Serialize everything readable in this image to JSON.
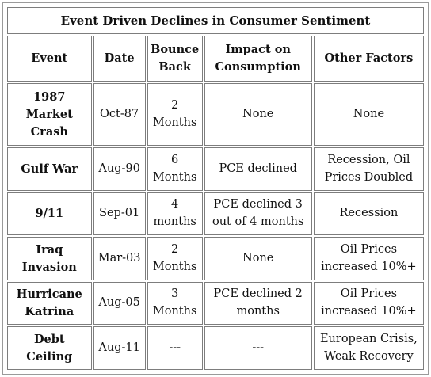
{
  "table": {
    "title": "Event Driven Declines in Consumer Sentiment",
    "headers": [
      "Event",
      "Date",
      "Bounce Back",
      "Impact on Consumption",
      "Other Factors"
    ],
    "rows": [
      {
        "event": "1987 Market Crash",
        "date": "Oct-87",
        "bounce": "2 Months",
        "impact": "None",
        "other": "None"
      },
      {
        "event": "Gulf War",
        "date": "Aug-90",
        "bounce": "6 Months",
        "impact": "PCE declined",
        "other": "Recession, Oil Prices Doubled"
      },
      {
        "event": "9/11",
        "date": "Sep-01",
        "bounce": "4 months",
        "impact": "PCE declined 3 out of 4 months",
        "other": "Recession"
      },
      {
        "event": "Iraq Invasion",
        "date": "Mar-03",
        "bounce": "2 Months",
        "impact": "None",
        "other": "Oil Prices increased 10%+"
      },
      {
        "event": "Hurricane Katrina",
        "date": "Aug-05",
        "bounce": "3 Months",
        "impact": "PCE declined 2 months",
        "other": "Oil Prices increased 10%+"
      },
      {
        "event": "Debt Ceiling",
        "date": "Aug-11",
        "bounce": "---",
        "impact": "---",
        "other": "European Crisis, Weak Recovery"
      }
    ]
  }
}
